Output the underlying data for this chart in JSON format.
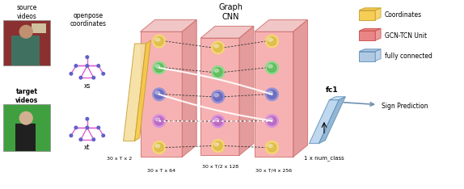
{
  "bg_color": "#ffffff",
  "source_label": "source\nvideos",
  "target_label": "target\nvideos",
  "openpose_label": "openpose\ncoordinates",
  "graph_cnn_label": "Graph\nCNN",
  "xs_label": "xs",
  "xt_label": "xt",
  "dim_labels": [
    "30 x T x 2",
    "30 x T x 64",
    "30 x T/2 x 128",
    "30 x T/4 x 256",
    "1 x num_class"
  ],
  "fc_label": "fc1",
  "prediction_label": "Sign Prediction",
  "legend_items": [
    "Coordinates",
    "GCN-TCN Unit",
    "fully connected"
  ],
  "legend_colors": [
    "#F5C842",
    "#E87878",
    "#A8C4E0"
  ],
  "legend_edge": [
    "#C8A030",
    "#C85050",
    "#6090B8"
  ],
  "pink_front": "#F5AAAA",
  "pink_top": "#F0C0C0",
  "pink_right": "#E09090",
  "pink_edge": "#D07070",
  "yellow_front": "#F5DFA0",
  "yellow_top": "#F5C842",
  "yellow_edge": "#C8A030",
  "blue_front": "#B8D4EE",
  "blue_top": "#C8E0F8",
  "blue_right": "#88B0D0",
  "blue_edge": "#6090B8",
  "node_colors_outer": [
    "#F5D870",
    "#90D890",
    "#B8B8E8",
    "#E8B8E8"
  ],
  "node_colors_inner": [
    "#E8C840",
    "#60C060",
    "#9090D0",
    "#D090C0"
  ],
  "skeleton_color": "#E060D0",
  "node_dot_color": "#6060C8",
  "src_img_color": "#B06050",
  "tgt_img_color": "#50A050"
}
